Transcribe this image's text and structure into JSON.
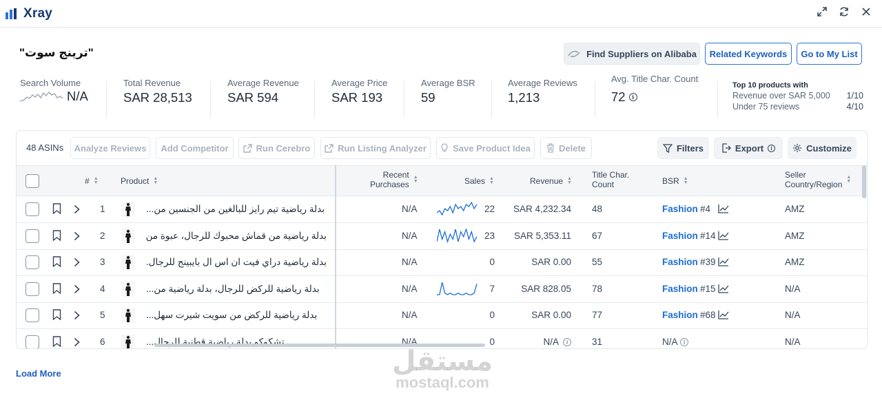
{
  "app": {
    "title": "Xray"
  },
  "keyword": "\"ترينج سوت\"",
  "buttons": {
    "find_suppliers": "Find Suppliers on Alibaba",
    "related_keywords": "Related Keywords",
    "go_to_my_list": "Go to My List"
  },
  "stats": {
    "search_volume": {
      "label": "Search Volume",
      "value": "N/A"
    },
    "total_revenue": {
      "label": "Total Revenue",
      "value": "SAR 28,513"
    },
    "average_revenue": {
      "label": "Average Revenue",
      "value": "SAR 594"
    },
    "average_price": {
      "label": "Average Price",
      "value": "SAR 193"
    },
    "average_bsr": {
      "label": "Average BSR",
      "value": "59"
    },
    "average_reviews": {
      "label": "Average Reviews",
      "value": "1,213"
    },
    "avg_title_char": {
      "label": "Avg. Title Char. Count",
      "value": "72"
    }
  },
  "top10": {
    "title": "Top 10 products with",
    "rows": [
      {
        "label": "Revenue over SAR 5,000",
        "value": "1/10"
      },
      {
        "label": "Under 75 reviews",
        "value": "4/10"
      }
    ]
  },
  "toolbar": {
    "asins_count": "48 ASINs",
    "analyze_reviews": "Analyze Reviews",
    "add_competitor": "Add Competitor",
    "run_cerebro": "Run Cerebro",
    "run_listing_analyzer": "Run Listing Analyzer",
    "save_product_idea": "Save Product Idea",
    "delete": "Delete",
    "filters": "Filters",
    "export": "Export",
    "customize": "Customize"
  },
  "columns": {
    "number": "#",
    "product": "Product",
    "recent_purchases_1": "Recent",
    "recent_purchases_2": "Purchases",
    "sales": "Sales",
    "revenue": "Revenue",
    "title_char_1": "Title Char.",
    "title_char_2": "Count",
    "bsr": "BSR",
    "seller_country_1": "Seller",
    "seller_country_2": "Country/Region"
  },
  "rows": [
    {
      "num": "1",
      "product": "بدلة رياضية تيم رايز للبالغين من الجنسين من...",
      "recent": "N/A",
      "sales": "22",
      "revenue": "SAR 4,232.34",
      "title_chars": "48",
      "bsr_cat": "Fashion",
      "bsr_rank": "#4",
      "seller": "AMZ",
      "spark": [
        5,
        6,
        4,
        7,
        6,
        8,
        5,
        9,
        7,
        8,
        6,
        9,
        8,
        10,
        7,
        9
      ]
    },
    {
      "num": "2",
      "product": "بدلة رياضية من قماش محبوك للرجال، عبوة من...",
      "recent": "N/A",
      "sales": "23",
      "revenue": "SAR 5,353.11",
      "title_chars": "67",
      "bsr_cat": "Fashion",
      "bsr_rank": "#14",
      "seller": "AMZ",
      "spark": [
        4,
        9,
        5,
        8,
        4,
        7,
        5,
        9,
        4,
        8,
        6,
        9,
        5,
        8,
        4,
        6
      ]
    },
    {
      "num": "3",
      "product": "بدلة رياضية دراي فيت ان اس ال بايبينج للرجال...",
      "recent": "N/A",
      "sales": "0",
      "revenue": "SAR 0.00",
      "title_chars": "55",
      "bsr_cat": "Fashion",
      "bsr_rank": "#39",
      "seller": "AMZ",
      "spark": []
    },
    {
      "num": "4",
      "product": "بدلة رياضية للركض للرجال، بدلة رياضية من...",
      "recent": "N/A",
      "sales": "7",
      "revenue": "SAR 828.05",
      "title_chars": "78",
      "bsr_cat": "Fashion",
      "bsr_rank": "#15",
      "seller": "N/A",
      "spark": [
        2,
        2,
        10,
        3,
        2,
        3,
        2,
        2,
        3,
        2,
        2,
        3,
        2,
        2,
        3,
        9
      ]
    },
    {
      "num": "5",
      "product": "بدلة رياضية للركض من سويت شيرت سهل...",
      "recent": "N/A",
      "sales": "0",
      "revenue": "SAR 0.00",
      "title_chars": "77",
      "bsr_cat": "Fashion",
      "bsr_rank": "#68",
      "seller": "N/A",
      "spark": []
    },
    {
      "num": "6",
      "product": "تشكوكو بدلة رياضية قطنية للرجال...",
      "recent": "N/A",
      "sales": "0",
      "revenue": "N/A",
      "title_chars": "31",
      "bsr_cat": "",
      "bsr_rank": "N/A",
      "seller": "N/A",
      "spark": []
    }
  ],
  "load_more": "Load More",
  "watermark": {
    "arabic": "مستقل",
    "latin": "mostaql.com"
  },
  "colors": {
    "accent": "#1d6ed8",
    "brand": "#183a72"
  }
}
